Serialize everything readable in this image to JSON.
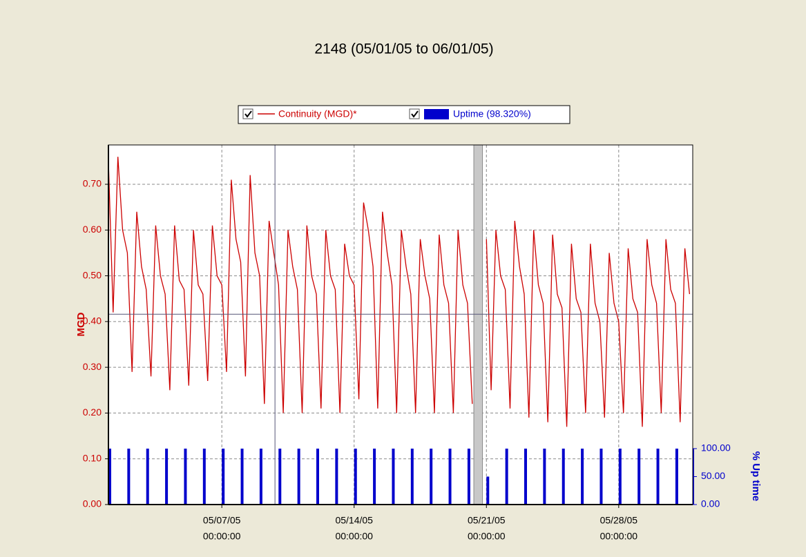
{
  "chart_data": {
    "type": "line",
    "title": "2148 (05/01/05 to 06/01/05)",
    "ylabel": "MGD",
    "y2label": "% Up time",
    "grid": true,
    "xlim": [
      "05/01/05 00:00",
      "05/31/05 22:00"
    ],
    "xticks": [
      {
        "value": "05/07/05 00:00",
        "label": [
          "05/07/05",
          "00:00:00"
        ]
      },
      {
        "value": "05/14/05 00:00",
        "label": [
          "05/14/05",
          "00:00:00"
        ]
      },
      {
        "value": "05/21/05 00:00",
        "label": [
          "05/21/05",
          "00:00:00"
        ]
      },
      {
        "value": "05/28/05 00:00",
        "label": [
          "05/28/05",
          "00:00:00"
        ]
      }
    ],
    "ylim": [
      0,
      0.786
    ],
    "yticks": [
      {
        "value": 0,
        "label": "0.00"
      },
      {
        "value": 0.1,
        "label": "0.10"
      },
      {
        "value": 0.2,
        "label": "0.20"
      },
      {
        "value": 0.3,
        "label": "0.30"
      },
      {
        "value": 0.4,
        "label": "0.40"
      },
      {
        "value": 0.5,
        "label": "0.50"
      },
      {
        "value": 0.6,
        "label": "0.60"
      },
      {
        "value": 0.7,
        "label": "0.70"
      }
    ],
    "y2lim": [
      0,
      643
    ],
    "y2ticks": [
      {
        "value": 0,
        "label": "0.00"
      },
      {
        "value": 50,
        "label": "50.00"
      },
      {
        "value": 100,
        "label": "100.00"
      }
    ],
    "gap": [
      "05/20/05 08:00",
      "05/20/05 19:00"
    ],
    "cursor": {
      "x": "05/09/05 19:30",
      "y": 0.416
    },
    "series": [
      {
        "name": "Continuity (MGD)*",
        "color": "#cc0000",
        "x": [
          "05/01/05 00:00",
          "05/01/05 06:00",
          "05/01/05 12:00",
          "05/01/05 18:00",
          "05/02/05 00:00",
          "05/02/05 06:00",
          "05/02/05 12:00",
          "05/02/05 18:00",
          "05/03/05 00:00",
          "05/03/05 06:00",
          "05/03/05 12:00",
          "05/03/05 18:00",
          "05/04/05 00:00",
          "05/04/05 06:00",
          "05/04/05 12:00",
          "05/04/05 18:00",
          "05/05/05 00:00",
          "05/05/05 06:00",
          "05/05/05 12:00",
          "05/05/05 18:00",
          "05/06/05 00:00",
          "05/06/05 06:00",
          "05/06/05 12:00",
          "05/06/05 18:00",
          "05/07/05 00:00",
          "05/07/05 06:00",
          "05/07/05 12:00",
          "05/07/05 18:00",
          "05/08/05 00:00",
          "05/08/05 06:00",
          "05/08/05 12:00",
          "05/08/05 18:00",
          "05/09/05 00:00",
          "05/09/05 06:00",
          "05/09/05 12:00",
          "05/09/05 18:00",
          "05/10/05 00:00",
          "05/10/05 06:00",
          "05/10/05 12:00",
          "05/10/05 18:00",
          "05/11/05 00:00",
          "05/11/05 06:00",
          "05/11/05 12:00",
          "05/11/05 18:00",
          "05/12/05 00:00",
          "05/12/05 06:00",
          "05/12/05 12:00",
          "05/12/05 18:00",
          "05/13/05 00:00",
          "05/13/05 06:00",
          "05/13/05 12:00",
          "05/13/05 18:00",
          "05/14/05 00:00",
          "05/14/05 06:00",
          "05/14/05 12:00",
          "05/14/05 18:00",
          "05/15/05 00:00",
          "05/15/05 06:00",
          "05/15/05 12:00",
          "05/15/05 18:00",
          "05/16/05 00:00",
          "05/16/05 06:00",
          "05/16/05 12:00",
          "05/16/05 18:00",
          "05/17/05 00:00",
          "05/17/05 06:00",
          "05/17/05 12:00",
          "05/17/05 18:00",
          "05/18/05 00:00",
          "05/18/05 06:00",
          "05/18/05 12:00",
          "05/18/05 18:00",
          "05/19/05 00:00",
          "05/19/05 06:00",
          "05/19/05 12:00",
          "05/19/05 18:00",
          "05/20/05 00:00",
          "05/20/05 06:00",
          "05/20/05 12:00",
          "05/20/05 18:00",
          "05/21/05 00:00",
          "05/21/05 06:00",
          "05/21/05 12:00",
          "05/21/05 18:00",
          "05/22/05 00:00",
          "05/22/05 06:00",
          "05/22/05 12:00",
          "05/22/05 18:00",
          "05/23/05 00:00",
          "05/23/05 06:00",
          "05/23/05 12:00",
          "05/23/05 18:00",
          "05/24/05 00:00",
          "05/24/05 06:00",
          "05/24/05 12:00",
          "05/24/05 18:00",
          "05/25/05 00:00",
          "05/25/05 06:00",
          "05/25/05 12:00",
          "05/25/05 18:00",
          "05/26/05 00:00",
          "05/26/05 06:00",
          "05/26/05 12:00",
          "05/26/05 18:00",
          "05/27/05 00:00",
          "05/27/05 06:00",
          "05/27/05 12:00",
          "05/27/05 18:00",
          "05/28/05 00:00",
          "05/28/05 06:00",
          "05/28/05 12:00",
          "05/28/05 18:00",
          "05/29/05 00:00",
          "05/29/05 06:00",
          "05/29/05 12:00",
          "05/29/05 18:00",
          "05/30/05 00:00",
          "05/30/05 06:00",
          "05/30/05 12:00",
          "05/30/05 18:00",
          "05/31/05 00:00",
          "05/31/05 06:00",
          "05/31/05 12:00",
          "05/31/05 18:00"
        ],
        "values": [
          0.75,
          0.42,
          0.76,
          0.6,
          0.55,
          0.29,
          0.64,
          0.52,
          0.47,
          0.28,
          0.61,
          0.5,
          0.46,
          0.25,
          0.61,
          0.49,
          0.47,
          0.26,
          0.6,
          0.48,
          0.46,
          0.27,
          0.61,
          0.5,
          0.48,
          0.29,
          0.71,
          0.58,
          0.53,
          0.28,
          0.72,
          0.55,
          0.5,
          0.22,
          0.62,
          0.55,
          0.48,
          0.2,
          0.6,
          0.52,
          0.47,
          0.2,
          0.61,
          0.5,
          0.46,
          0.21,
          0.6,
          0.5,
          0.47,
          0.2,
          0.57,
          0.5,
          0.48,
          0.23,
          0.66,
          0.6,
          0.52,
          0.21,
          0.64,
          0.55,
          0.48,
          0.2,
          0.6,
          0.52,
          0.46,
          0.2,
          0.58,
          0.5,
          0.45,
          0.2,
          0.59,
          0.48,
          0.44,
          0.2,
          0.6,
          0.48,
          0.44,
          0.22,
          null,
          null,
          0.58,
          0.25,
          0.6,
          0.5,
          0.47,
          0.21,
          0.62,
          0.52,
          0.46,
          0.19,
          0.6,
          0.48,
          0.44,
          0.18,
          0.59,
          0.46,
          0.43,
          0.17,
          0.57,
          0.45,
          0.42,
          0.2,
          0.57,
          0.44,
          0.4,
          0.19,
          0.55,
          0.44,
          0.4,
          0.2,
          0.56,
          0.45,
          0.42,
          0.17,
          0.58,
          0.48,
          0.44,
          0.2,
          0.58,
          0.47,
          0.44,
          0.18,
          0.56,
          0.46
        ]
      },
      {
        "name": "Uptime (98.320%)",
        "color": "#0000cc",
        "axis": "y2",
        "x": [
          "05/01/05 00:00",
          "05/02/05 00:00",
          "05/03/05 00:00",
          "05/04/05 00:00",
          "05/05/05 00:00",
          "05/06/05 00:00",
          "05/07/05 00:00",
          "05/08/05 00:00",
          "05/09/05 00:00",
          "05/10/05 00:00",
          "05/11/05 00:00",
          "05/12/05 00:00",
          "05/13/05 00:00",
          "05/14/05 00:00",
          "05/15/05 00:00",
          "05/16/05 00:00",
          "05/17/05 00:00",
          "05/18/05 00:00",
          "05/19/05 00:00",
          "05/20/05 00:00",
          "05/21/05 00:00",
          "05/22/05 00:00",
          "05/23/05 00:00",
          "05/24/05 00:00",
          "05/25/05 00:00",
          "05/26/05 00:00",
          "05/27/05 00:00",
          "05/28/05 00:00",
          "05/29/05 00:00",
          "05/30/05 00:00",
          "05/31/05 00:00"
        ],
        "values": [
          100,
          100,
          100,
          100,
          100,
          100,
          100,
          100,
          100,
          100,
          100,
          100,
          100,
          100,
          100,
          100,
          100,
          100,
          100,
          100,
          50,
          100,
          100,
          100,
          100,
          100,
          100,
          100,
          100,
          100,
          100
        ]
      }
    ]
  }
}
